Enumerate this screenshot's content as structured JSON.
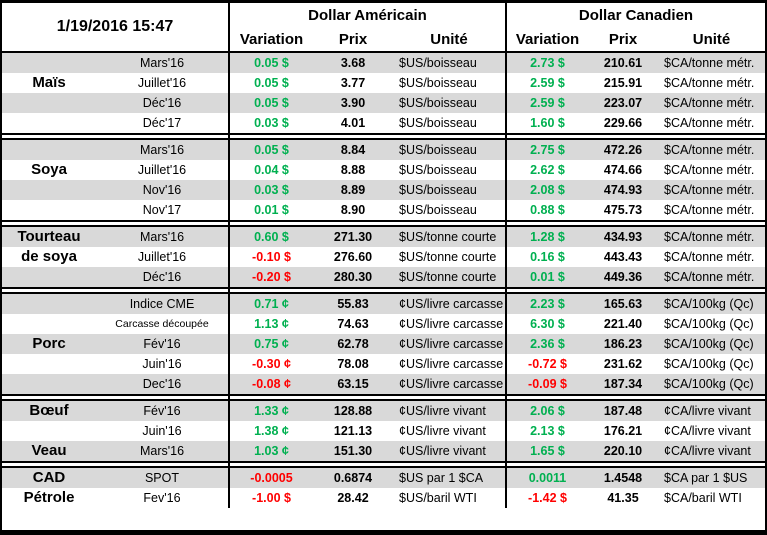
{
  "header": {
    "datetime": "1/19/2016 15:47",
    "us_title": "Dollar Américain",
    "ca_title": "Dollar Canadien",
    "cols": {
      "variation": "Variation",
      "prix": "Prix",
      "unite": "Unité"
    }
  },
  "colors": {
    "positive": "#00B050",
    "negative": "#FF0000",
    "stripe": "#D9D9D9"
  },
  "sections": [
    {
      "commodity": "Maïs",
      "rows": [
        {
          "label": "",
          "month": "Mars'16",
          "us_var": "0.05 $",
          "us_dir": "positive",
          "us_prix": "3.68",
          "us_unit": "$US/boisseau",
          "ca_var": "2.73 $",
          "ca_dir": "positive",
          "ca_prix": "210.61",
          "ca_unit": "$CA/tonne métr."
        },
        {
          "label": "Maïs",
          "month": "Juillet'16",
          "us_var": "0.05 $",
          "us_dir": "positive",
          "us_prix": "3.77",
          "us_unit": "$US/boisseau",
          "ca_var": "2.59 $",
          "ca_dir": "positive",
          "ca_prix": "215.91",
          "ca_unit": "$CA/tonne métr."
        },
        {
          "label": "",
          "month": "Déc'16",
          "us_var": "0.05 $",
          "us_dir": "positive",
          "us_prix": "3.90",
          "us_unit": "$US/boisseau",
          "ca_var": "2.59 $",
          "ca_dir": "positive",
          "ca_prix": "223.07",
          "ca_unit": "$CA/tonne métr."
        },
        {
          "label": "",
          "month": "Déc'17",
          "us_var": "0.03 $",
          "us_dir": "positive",
          "us_prix": "4.01",
          "us_unit": "$US/boisseau",
          "ca_var": "1.60 $",
          "ca_dir": "positive",
          "ca_prix": "229.66",
          "ca_unit": "$CA/tonne métr."
        }
      ]
    },
    {
      "commodity": "Soya",
      "rows": [
        {
          "label": "",
          "month": "Mars'16",
          "us_var": "0.05 $",
          "us_dir": "positive",
          "us_prix": "8.84",
          "us_unit": "$US/boisseau",
          "ca_var": "2.75 $",
          "ca_dir": "positive",
          "ca_prix": "472.26",
          "ca_unit": "$CA/tonne métr."
        },
        {
          "label": "Soya",
          "month": "Juillet'16",
          "us_var": "0.04 $",
          "us_dir": "positive",
          "us_prix": "8.88",
          "us_unit": "$US/boisseau",
          "ca_var": "2.62 $",
          "ca_dir": "positive",
          "ca_prix": "474.66",
          "ca_unit": "$CA/tonne métr."
        },
        {
          "label": "",
          "month": "Nov'16",
          "us_var": "0.03 $",
          "us_dir": "positive",
          "us_prix": "8.89",
          "us_unit": "$US/boisseau",
          "ca_var": "2.08 $",
          "ca_dir": "positive",
          "ca_prix": "474.93",
          "ca_unit": "$CA/tonne métr."
        },
        {
          "label": "",
          "month": "Nov'17",
          "us_var": "0.01 $",
          "us_dir": "positive",
          "us_prix": "8.90",
          "us_unit": "$US/boisseau",
          "ca_var": "0.88 $",
          "ca_dir": "positive",
          "ca_prix": "475.73",
          "ca_unit": "$CA/tonne métr."
        }
      ]
    },
    {
      "commodity": "Tourteau de soya",
      "rows": [
        {
          "label": "Tourteau",
          "month": "Mars'16",
          "us_var": "0.60 $",
          "us_dir": "positive",
          "us_prix": "271.30",
          "us_unit": "$US/tonne courte",
          "ca_var": "1.28 $",
          "ca_dir": "positive",
          "ca_prix": "434.93",
          "ca_unit": "$CA/tonne métr."
        },
        {
          "label": "de soya",
          "month": "Juillet'16",
          "us_var": "-0.10 $",
          "us_dir": "negative",
          "us_prix": "276.60",
          "us_unit": "$US/tonne courte",
          "ca_var": "0.16 $",
          "ca_dir": "positive",
          "ca_prix": "443.43",
          "ca_unit": "$CA/tonne métr."
        },
        {
          "label": "",
          "month": "Déc'16",
          "us_var": "-0.20 $",
          "us_dir": "negative",
          "us_prix": "280.30",
          "us_unit": "$US/tonne courte",
          "ca_var": "0.01 $",
          "ca_dir": "positive",
          "ca_prix": "449.36",
          "ca_unit": "$CA/tonne métr."
        }
      ]
    },
    {
      "commodity": "Porc",
      "rows": [
        {
          "label": "",
          "month": "Indice CME",
          "us_var": "0.71 ¢",
          "us_dir": "positive",
          "us_prix": "55.83",
          "us_unit": "¢US/livre carcasse",
          "ca_var": "2.23 $",
          "ca_dir": "positive",
          "ca_prix": "165.63",
          "ca_unit": "$CA/100kg (Qc)"
        },
        {
          "label": "",
          "month": "Carcasse découpée",
          "small": true,
          "us_var": "1.13 ¢",
          "us_dir": "positive",
          "us_prix": "74.63",
          "us_unit": "¢US/livre carcasse",
          "ca_var": "6.30 $",
          "ca_dir": "positive",
          "ca_prix": "221.40",
          "ca_unit": "$CA/100kg (Qc)"
        },
        {
          "label": "Porc",
          "month": "Fév'16",
          "us_var": "0.75 ¢",
          "us_dir": "positive",
          "us_prix": "62.78",
          "us_unit": "¢US/livre carcasse",
          "ca_var": "2.36 $",
          "ca_dir": "positive",
          "ca_prix": "186.23",
          "ca_unit": "$CA/100kg (Qc)"
        },
        {
          "label": "",
          "month": "Juin'16",
          "us_var": "-0.30 ¢",
          "us_dir": "negative",
          "us_prix": "78.08",
          "us_unit": "¢US/livre carcasse",
          "ca_var": "-0.72 $",
          "ca_dir": "negative",
          "ca_prix": "231.62",
          "ca_unit": "$CA/100kg (Qc)"
        },
        {
          "label": "",
          "month": "Dec'16",
          "us_var": "-0.08 ¢",
          "us_dir": "negative",
          "us_prix": "63.15",
          "us_unit": "¢US/livre carcasse",
          "ca_var": "-0.09 $",
          "ca_dir": "negative",
          "ca_prix": "187.34",
          "ca_unit": "$CA/100kg (Qc)"
        }
      ]
    },
    {
      "commodity": "Bœuf / Veau",
      "rows": [
        {
          "label": "Bœuf",
          "month": "Fév'16",
          "us_var": "1.33 ¢",
          "us_dir": "positive",
          "us_prix": "128.88",
          "us_unit": "¢US/livre vivant",
          "ca_var": "2.06 $",
          "ca_dir": "positive",
          "ca_prix": "187.48",
          "ca_unit": "¢CA/livre vivant"
        },
        {
          "label": "",
          "month": "Juin'16",
          "us_var": "1.38 ¢",
          "us_dir": "positive",
          "us_prix": "121.13",
          "us_unit": "¢US/livre vivant",
          "ca_var": "2.13 $",
          "ca_dir": "positive",
          "ca_prix": "176.21",
          "ca_unit": "¢CA/livre vivant"
        },
        {
          "label": "Veau",
          "month": "Mars'16",
          "us_var": "1.03 ¢",
          "us_dir": "positive",
          "us_prix": "151.30",
          "us_unit": "¢US/livre vivant",
          "ca_var": "1.65 $",
          "ca_dir": "positive",
          "ca_prix": "220.10",
          "ca_unit": "¢CA/livre vivant"
        }
      ]
    },
    {
      "commodity": "CAD / Pétrole",
      "rows": [
        {
          "label": "CAD",
          "month": "SPOT",
          "us_var": "-0.0005",
          "us_dir": "negative",
          "us_prix": "0.6874",
          "us_unit": "$US par 1 $CA",
          "ca_var": "0.0011",
          "ca_dir": "positive",
          "ca_prix": "1.4548",
          "ca_unit": "$CA par 1 $US"
        },
        {
          "label": "Pétrole",
          "month": "Fev'16",
          "us_var": "-1.00 $",
          "us_dir": "negative",
          "us_prix": "28.42",
          "us_unit": "$US/baril WTI",
          "ca_var": "-1.42 $",
          "ca_dir": "negative",
          "ca_prix": "41.35",
          "ca_unit": "$CA/baril WTI"
        }
      ]
    }
  ]
}
